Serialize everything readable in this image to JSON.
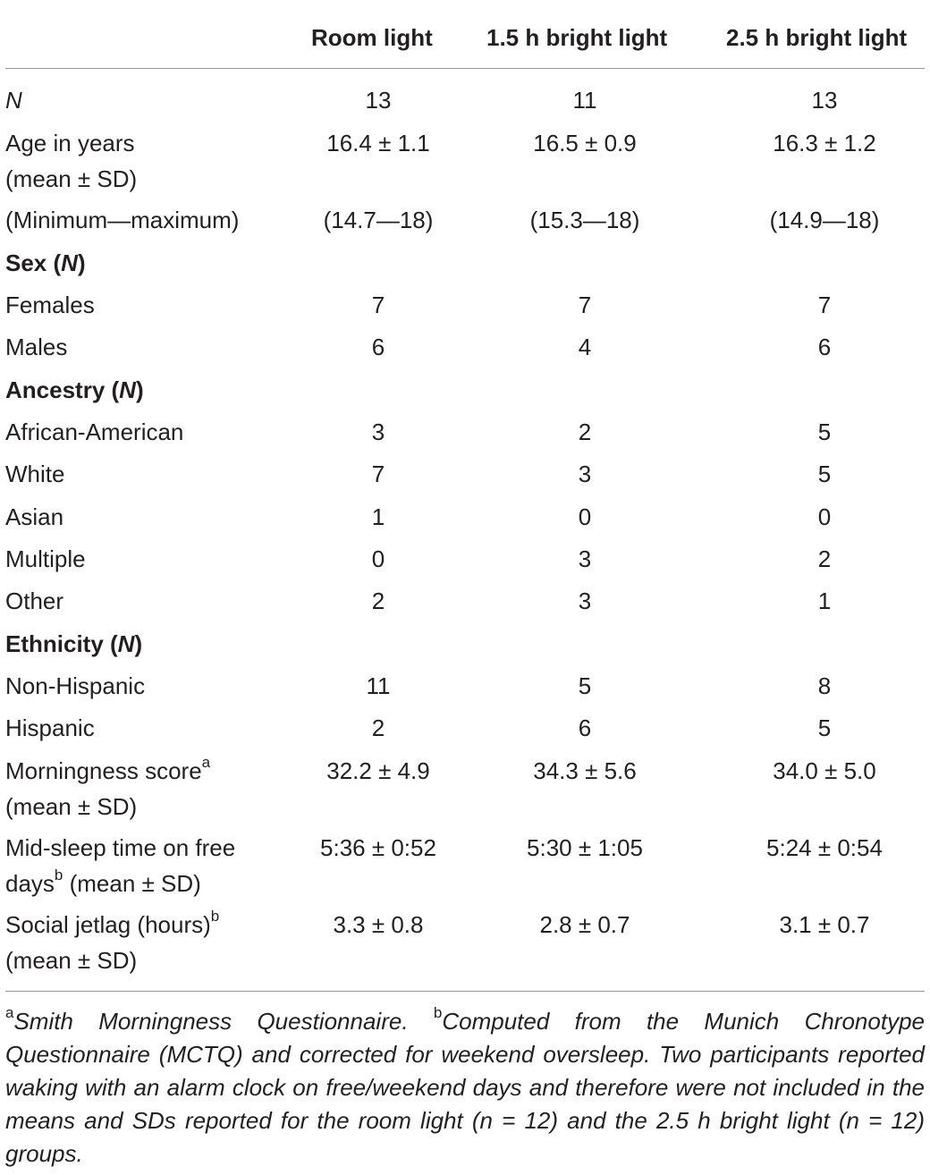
{
  "header": {
    "col1": "Room light",
    "col2": "1.5 h bright light",
    "col3": "2.5 h bright light"
  },
  "rows": {
    "n": {
      "label": "N",
      "v1": "13",
      "v2": "11",
      "v3": "13"
    },
    "age": {
      "label1": "Age in years",
      "label2": "(mean ± SD)",
      "v1": "16.4 ± 1.1",
      "v2": "16.5 ± 0.9",
      "v3": "16.3 ± 1.2"
    },
    "range": {
      "label": "(Minimum—maximum)",
      "v1": "(14.7—18)",
      "v2": "(15.3—18)",
      "v3": "(14.9—18)"
    },
    "sex_heading": {
      "label": "Sex (",
      "n": "N",
      "close": ")"
    },
    "females": {
      "label": "Females",
      "v1": "7",
      "v2": "7",
      "v3": "7"
    },
    "males": {
      "label": "Males",
      "v1": "6",
      "v2": "4",
      "v3": "6"
    },
    "ancestry_heading": {
      "label": "Ancestry (",
      "n": "N",
      "close": ")"
    },
    "african_american": {
      "label": "African-American",
      "v1": "3",
      "v2": "2",
      "v3": "5"
    },
    "white": {
      "label": "White",
      "v1": "7",
      "v2": "3",
      "v3": "5"
    },
    "asian": {
      "label": "Asian",
      "v1": "1",
      "v2": "0",
      "v3": "0"
    },
    "multiple": {
      "label": "Multiple",
      "v1": "0",
      "v2": "3",
      "v3": "2"
    },
    "other": {
      "label": "Other",
      "v1": "2",
      "v2": "3",
      "v3": "1"
    },
    "ethnicity_heading": {
      "label": "Ethnicity (",
      "n": "N",
      "close": ")"
    },
    "non_hispanic": {
      "label": "Non-Hispanic",
      "v1": "11",
      "v2": "5",
      "v3": "8"
    },
    "hispanic": {
      "label": "Hispanic",
      "v1": "2",
      "v2": "6",
      "v3": "5"
    },
    "morningness": {
      "label1": "Morningness score",
      "sup": "a",
      "label2": "(mean ± SD)",
      "v1": "32.2 ± 4.9",
      "v2": "34.3 ± 5.6",
      "v3": "34.0 ± 5.0"
    },
    "midsleep": {
      "label1": "Mid-sleep time on free",
      "label2a": "days",
      "sup": "b",
      "label2b": " (mean ± SD)",
      "v1": "5:36 ± 0:52",
      "v2": "5:30 ± 1:05",
      "v3": "5:24 ± 0:54"
    },
    "jetlag": {
      "label1": "Social jetlag (hours)",
      "sup": "b",
      "label2": "(mean ± SD)",
      "v1": "3.3 ± 0.8",
      "v2": "2.8 ± 0.7",
      "v3": "3.1 ± 0.7"
    }
  },
  "footnote": {
    "sup_a": "a",
    "text_a": "Smith Morningness Questionnaire. ",
    "sup_b": "b",
    "text_b": "Computed from the Munich Chronotype Questionnaire (MCTQ) and corrected for weekend oversleep. Two participants reported waking with an alarm clock on free/weekend days and therefore were not included in the means and SDs reported for the room light (n = 12) and the 2.5 h bright light (n = 12) groups."
  }
}
